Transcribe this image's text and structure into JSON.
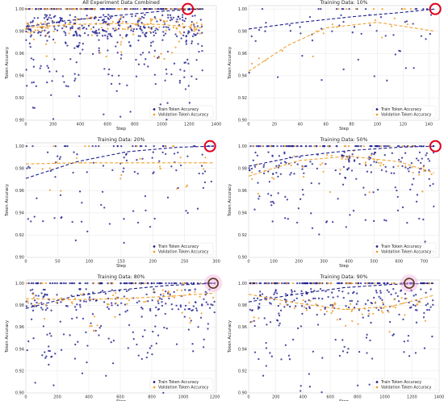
{
  "colors": {
    "train": "#1a1a8c",
    "validation": "#f0a030",
    "highlight_red": "#e0001b",
    "highlight_dark": "#5a3a20",
    "grid": "#e6e6e6",
    "axes_bg": "#ffffff"
  },
  "chart_data": [
    {
      "type": "scatter",
      "title": "All Experiment Data Combined",
      "xlabel": "Step",
      "ylabel": "Token Accuracy",
      "xlim": [
        0,
        1400
      ],
      "ylim": [
        0.9,
        1.003
      ],
      "xticks": [
        0,
        200,
        400,
        600,
        800,
        1000,
        1200,
        1400
      ],
      "yticks": [
        0.9,
        0.92,
        0.94,
        0.96,
        0.98,
        1.0
      ],
      "grid": true,
      "legend_position": "bottom-right",
      "series": [
        {
          "name": "Train Token Accuracy",
          "kind": "points",
          "trend": {
            "x": [
              0,
              300,
              700,
              1000,
              1300
            ],
            "y": [
              0.984,
              0.9895,
              0.9945,
              0.998,
              1.0
            ]
          }
        },
        {
          "name": "Validation Token Accuracy",
          "kind": "points",
          "trend": {
            "x": [
              0,
              300,
              700,
              1000,
              1300
            ],
            "y": [
              0.983,
              0.986,
              0.987,
              0.986,
              0.983
            ]
          }
        }
      ],
      "highlight": {
        "x": 1190,
        "y": 1.0,
        "style": "ring-red"
      }
    },
    {
      "type": "scatter",
      "title": "Training Data: 10%",
      "xlabel": "Step",
      "ylabel": "Token Accuracy",
      "xlim": [
        0,
        148
      ],
      "ylim": [
        0.9,
        1.003
      ],
      "xticks": [
        0,
        20,
        40,
        60,
        80,
        100,
        120,
        140
      ],
      "yticks": [
        0.9,
        0.92,
        0.94,
        0.96,
        0.98,
        1.0
      ],
      "grid": true,
      "legend_position": "bottom-right",
      "series": [
        {
          "name": "Train Token Accuracy",
          "kind": "points",
          "trend": {
            "x": [
              0,
              40,
              80,
              120,
              145
            ],
            "y": [
              0.982,
              0.988,
              0.993,
              0.997,
              1.0
            ]
          }
        },
        {
          "name": "Validation Token Accuracy",
          "kind": "points",
          "trend": {
            "x": [
              0,
              30,
              60,
              100,
              145
            ],
            "y": [
              0.944,
              0.967,
              0.983,
              0.988,
              0.98
            ]
          }
        }
      ],
      "highlight": {
        "x": 145,
        "y": 1.0,
        "style": "ring-red"
      }
    },
    {
      "type": "scatter",
      "title": "Training Data: 20%",
      "xlabel": "Step",
      "ylabel": "Token Accuracy",
      "xlim": [
        0,
        300
      ],
      "ylim": [
        0.9,
        1.003
      ],
      "xticks": [
        0,
        50,
        100,
        150,
        200,
        250,
        300
      ],
      "yticks": [
        0.9,
        0.92,
        0.94,
        0.96,
        0.98,
        1.0
      ],
      "grid": true,
      "legend_position": "bottom-right",
      "series": [
        {
          "name": "Train Token Accuracy",
          "kind": "points",
          "trend": {
            "x": [
              0,
              80,
              160,
              240,
              295
            ],
            "y": [
              0.971,
              0.986,
              0.995,
              0.999,
              1.0
            ]
          }
        },
        {
          "name": "Validation Token Accuracy",
          "kind": "points",
          "trend": {
            "x": [
              0,
              80,
              160,
              240,
              295
            ],
            "y": [
              0.984,
              0.985,
              0.985,
              0.985,
              0.985
            ]
          }
        }
      ],
      "highlight": {
        "x": 290,
        "y": 1.0,
        "style": "ring-red"
      }
    },
    {
      "type": "scatter",
      "title": "Training Data: 50%",
      "xlabel": "Step",
      "ylabel": "Token Accuracy",
      "xlim": [
        0,
        760
      ],
      "ylim": [
        0.9,
        1.003
      ],
      "xticks": [
        0,
        100,
        200,
        300,
        400,
        500,
        600,
        700
      ],
      "yticks": [
        0.9,
        0.92,
        0.94,
        0.96,
        0.98,
        1.0
      ],
      "grid": true,
      "legend_position": "bottom-right",
      "series": [
        {
          "name": "Train Token Accuracy",
          "kind": "points",
          "trend": {
            "x": [
              0,
              200,
              400,
              600,
              740
            ],
            "y": [
              0.982,
              0.991,
              0.996,
              0.999,
              1.0
            ]
          }
        },
        {
          "name": "Validation Token Accuracy",
          "kind": "points",
          "trend": {
            "x": [
              0,
              200,
              400,
              600,
              740
            ],
            "y": [
              0.973,
              0.987,
              0.991,
              0.986,
              0.976
            ]
          }
        }
      ],
      "highlight": {
        "x": 745,
        "y": 1.0,
        "style": "ring-red"
      }
    },
    {
      "type": "scatter",
      "title": "Training Data: 80%",
      "xlabel": "Step",
      "ylabel": "Token Accuracy",
      "xlim": [
        0,
        1210
      ],
      "ylim": [
        0.9,
        1.003
      ],
      "xticks": [
        0,
        200,
        400,
        600,
        800,
        1000,
        1200
      ],
      "yticks": [
        0.9,
        0.92,
        0.94,
        0.96,
        0.98,
        1.0
      ],
      "grid": true,
      "legend_position": "bottom-right",
      "series": [
        {
          "name": "Train Token Accuracy",
          "kind": "points",
          "trend": {
            "x": [
              0,
              300,
              600,
              900,
              1200
            ],
            "y": [
              0.977,
              0.988,
              0.994,
              0.998,
              1.0
            ]
          }
        },
        {
          "name": "Validation Token Accuracy",
          "kind": "points",
          "trend": {
            "x": [
              0,
              300,
              600,
              900,
              1200
            ],
            "y": [
              0.986,
              0.985,
              0.986,
              0.988,
              0.991
            ]
          }
        }
      ],
      "highlight": {
        "x": 1190,
        "y": 1.0,
        "style": "ring-dark-pink-glow"
      }
    },
    {
      "type": "scatter",
      "title": "Training Data: 90%",
      "xlabel": "Step",
      "ylabel": "Token Accuracy",
      "xlim": [
        0,
        1400
      ],
      "ylim": [
        0.9,
        1.003
      ],
      "xticks": [
        0,
        200,
        400,
        600,
        800,
        1000,
        1200,
        1400
      ],
      "yticks": [
        0.9,
        0.92,
        0.94,
        0.96,
        0.98,
        1.0
      ],
      "grid": true,
      "legend_position": "bottom-right",
      "series": [
        {
          "name": "Train Token Accuracy",
          "kind": "points",
          "trend": {
            "x": [
              0,
              350,
              700,
              1050,
              1360
            ],
            "y": [
              0.983,
              0.99,
              0.996,
              0.999,
              1.0
            ]
          }
        },
        {
          "name": "Validation Token Accuracy",
          "kind": "points",
          "trend": {
            "x": [
              0,
              350,
              700,
              1050,
              1360
            ],
            "y": [
              0.99,
              0.982,
              0.976,
              0.979,
              0.989
            ]
          }
        }
      ],
      "highlight": {
        "x": 1180,
        "y": 1.0,
        "style": "ring-dark-pink-glow"
      }
    }
  ]
}
